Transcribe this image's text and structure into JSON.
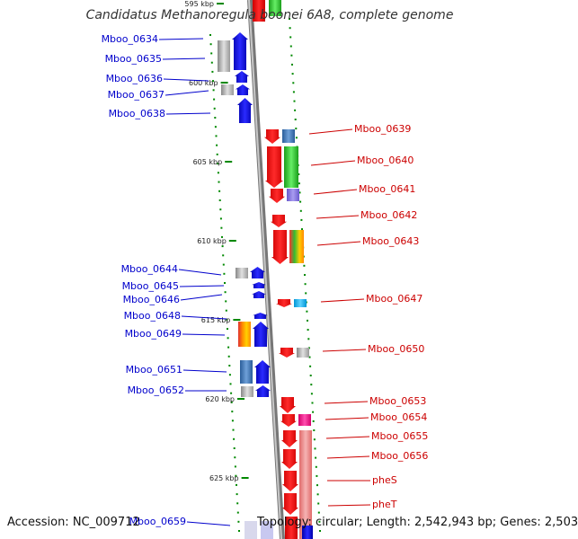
{
  "title": "Candidatus Methanoregula boonei 6A8, complete genome",
  "footer": {
    "accession": "Accession: NC_009712",
    "topology": "Topology: circular; Length: 2,542,943 bp; Genes: 2,503"
  },
  "colors": {
    "left_label": "#0000cc",
    "right_label": "#cc0000",
    "backbone": "#9a9a9a",
    "tick": "#008800"
  },
  "ticks": [
    {
      "label": "595 kbp"
    },
    {
      "label": "600 kbp"
    },
    {
      "label": "605 kbp"
    },
    {
      "label": "610 kbp"
    },
    {
      "label": "615 kbp"
    },
    {
      "label": "620 kbp"
    },
    {
      "label": "625 kbp"
    }
  ],
  "left_genes": [
    {
      "name": "Mboo_0634"
    },
    {
      "name": "Mboo_0635"
    },
    {
      "name": "Mboo_0636"
    },
    {
      "name": "Mboo_0637"
    },
    {
      "name": "Mboo_0638"
    },
    {
      "name": "Mboo_0644"
    },
    {
      "name": "Mboo_0645"
    },
    {
      "name": "Mboo_0646"
    },
    {
      "name": "Mboo_0648"
    },
    {
      "name": "Mboo_0649"
    },
    {
      "name": "Mboo_0651"
    },
    {
      "name": "Mboo_0652"
    },
    {
      "name": "Mboo_0659"
    }
  ],
  "right_genes": [
    {
      "name": "Mboo_0639"
    },
    {
      "name": "Mboo_0640"
    },
    {
      "name": "Mboo_0641"
    },
    {
      "name": "Mboo_0642"
    },
    {
      "name": "Mboo_0643"
    },
    {
      "name": "Mboo_0647"
    },
    {
      "name": "Mboo_0650"
    },
    {
      "name": "Mboo_0653"
    },
    {
      "name": "Mboo_0654"
    },
    {
      "name": "Mboo_0655"
    },
    {
      "name": "Mboo_0656"
    },
    {
      "name": "pheS"
    },
    {
      "name": "pheT"
    }
  ]
}
